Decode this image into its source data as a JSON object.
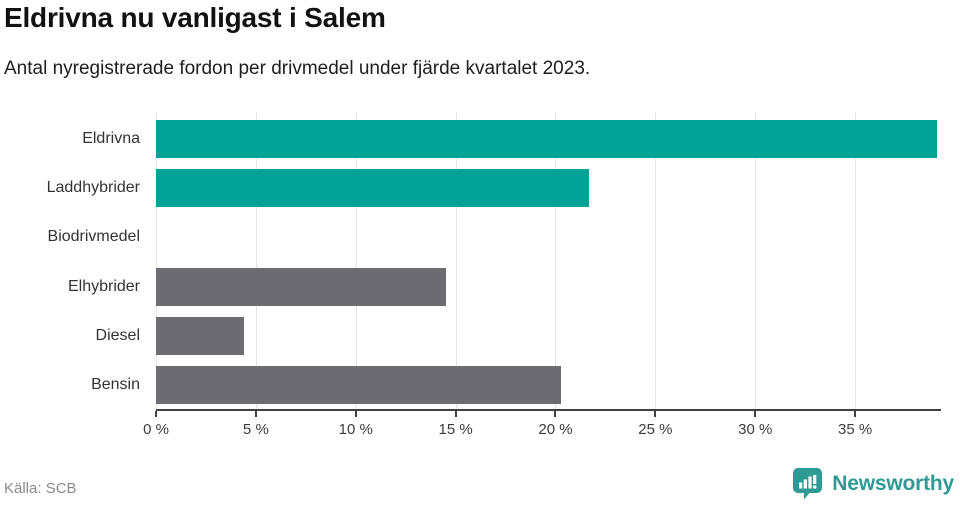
{
  "header": {
    "title": "Eldrivna nu vanligast i Salem",
    "subtitle": "Antal nyregistrerade fordon per drivmedel under fjärde kvartalet 2023."
  },
  "footer": {
    "source": "Källa: SCB",
    "brand_name": "Newsworthy",
    "brand_icon": "newsworthy-speech-bubble-chart-icon"
  },
  "colors": {
    "highlight_teal": "#00a396",
    "muted_gray": "#6c6b72",
    "grid_line": "#e3e3e5",
    "axis_line": "#404040",
    "brand_teal": "#2f9a93"
  },
  "chart_data": {
    "type": "bar",
    "orientation": "horizontal",
    "title": "Eldrivna nu vanligast i Salem",
    "subtitle": "Antal nyregistrerade fordon per drivmedel under fjärde kvartalet 2023.",
    "categories": [
      "Eldrivna",
      "Laddhybrider",
      "Biodrivmedel",
      "Elhybrider",
      "Diesel",
      "Bensin"
    ],
    "values": [
      39.1,
      21.7,
      0,
      14.5,
      4.4,
      20.3
    ],
    "unit": "%",
    "bar_colors": [
      "#00a396",
      "#00a396",
      "#6c6b72",
      "#6c6b72",
      "#6c6b72",
      "#6c6b72"
    ],
    "xlim": [
      0,
      39.3
    ],
    "xticks": [
      0,
      5,
      10,
      15,
      20,
      25,
      30,
      35
    ],
    "xtick_labels": [
      "0 %",
      "5 %",
      "10 %",
      "15 %",
      "20 %",
      "25 %",
      "30 %",
      "35 %"
    ],
    "grid": true,
    "legend": false
  }
}
